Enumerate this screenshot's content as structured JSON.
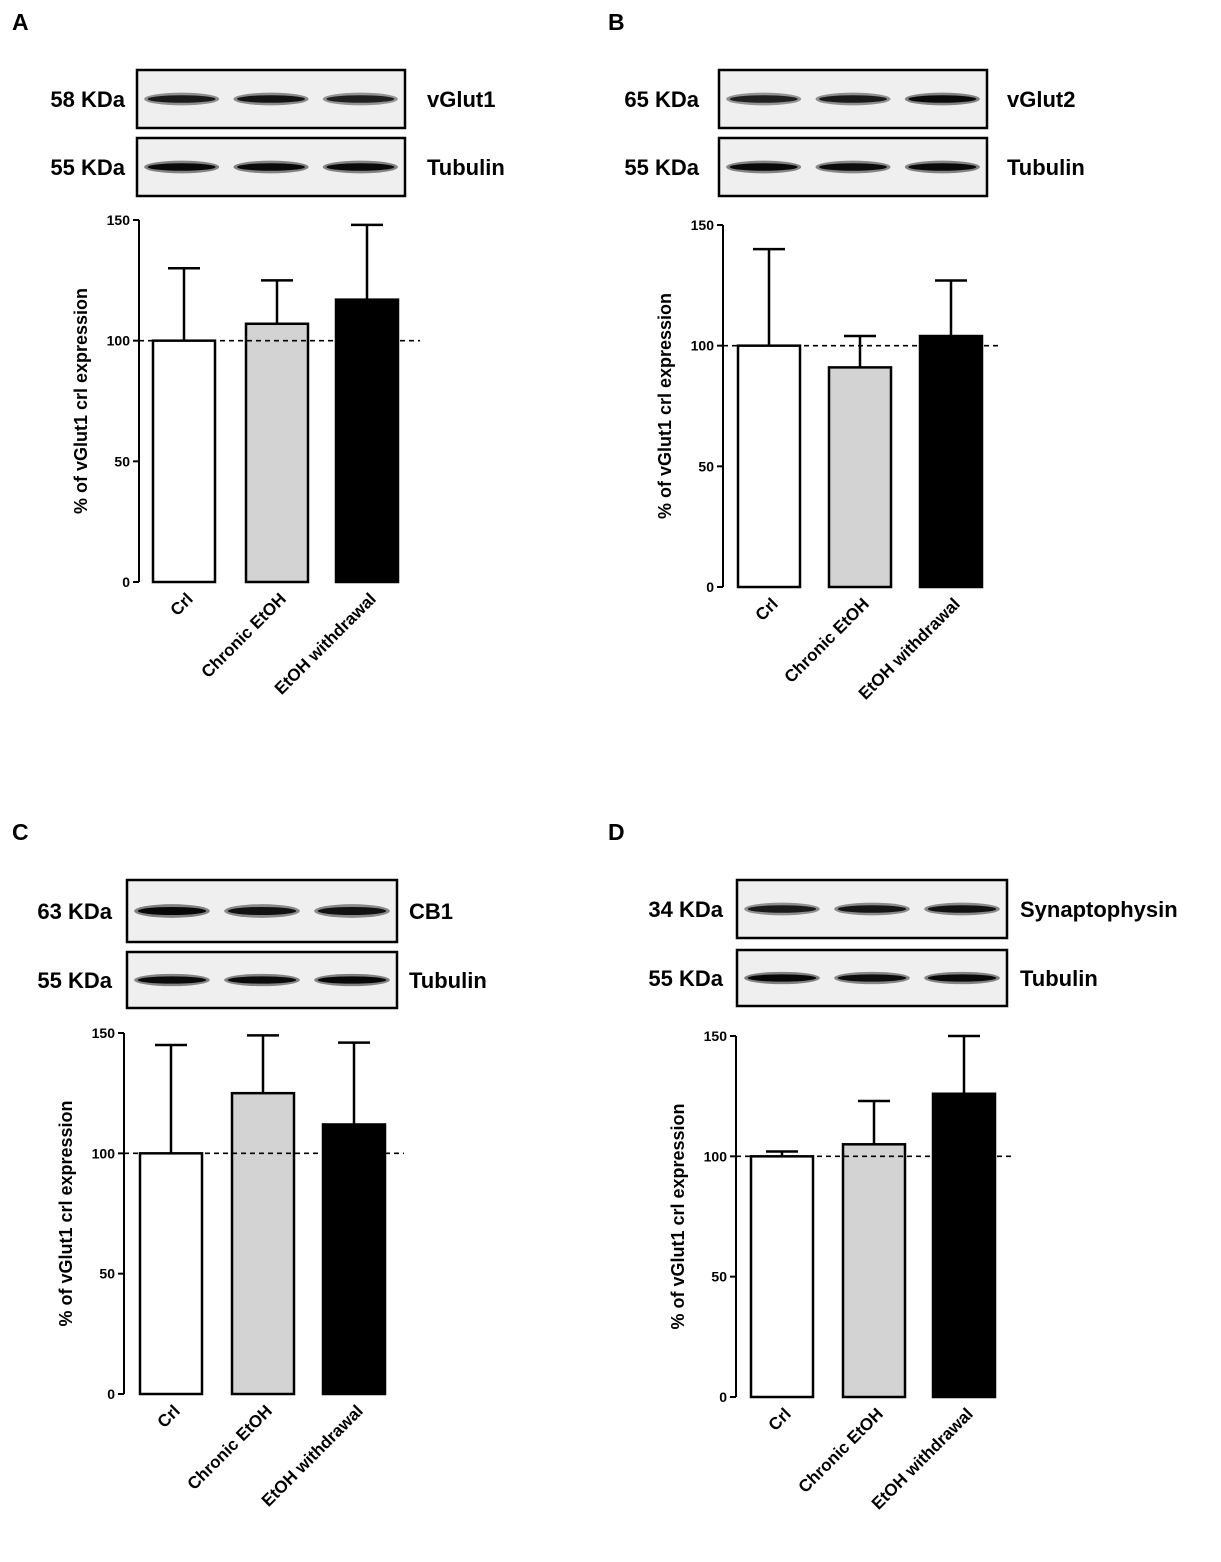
{
  "chart_data": [
    {
      "panel": "A",
      "type": "bar",
      "blot": [
        {
          "kda": "58 KDa",
          "protein": "vGlut1",
          "band_intensity": [
            0.82,
            0.86,
            0.78
          ]
        },
        {
          "kda": "55 KDa",
          "protein": "Tubulin",
          "band_intensity": [
            0.92,
            0.92,
            0.92
          ]
        }
      ],
      "categories": [
        "Crl",
        "Chronic EtOH",
        "EtOH withdrawal"
      ],
      "values": [
        100,
        107,
        117
      ],
      "errors": [
        30,
        18,
        31
      ],
      "bar_colors": [
        "#ffffff",
        "#d3d3d3",
        "#000000"
      ],
      "ylabel": "% of vGlut1 crl expression",
      "yticks": [
        "0",
        "50",
        "100",
        "150"
      ],
      "ylim": [
        0,
        150
      ],
      "reference_line": 100
    },
    {
      "panel": "B",
      "type": "bar",
      "blot": [
        {
          "kda": "65 KDa",
          "protein": "vGlut2",
          "band_intensity": [
            0.78,
            0.82,
            0.92
          ]
        },
        {
          "kda": "55 KDa",
          "protein": "Tubulin",
          "band_intensity": [
            0.92,
            0.9,
            0.92
          ]
        }
      ],
      "categories": [
        "Crl",
        "Chronic EtOH",
        "EtOH withdrawal"
      ],
      "values": [
        100,
        91,
        104
      ],
      "errors": [
        40,
        13,
        23
      ],
      "bar_colors": [
        "#ffffff",
        "#d3d3d3",
        "#000000"
      ],
      "ylabel": "% of vGlut1 crl expression",
      "yticks": [
        "0",
        "50",
        "100",
        "150"
      ],
      "ylim": [
        0,
        150
      ],
      "reference_line": 100
    },
    {
      "panel": "C",
      "type": "bar",
      "blot": [
        {
          "kda": "63 KDa",
          "protein": "CB1",
          "band_intensity": [
            0.95,
            0.88,
            0.88
          ]
        },
        {
          "kda": "55 KDa",
          "protein": "Tubulin",
          "band_intensity": [
            0.92,
            0.92,
            0.95
          ]
        }
      ],
      "categories": [
        "Crl",
        "Chronic EtOH",
        "EtOH withdrawal"
      ],
      "values": [
        100,
        125,
        112
      ],
      "errors": [
        45,
        24,
        34
      ],
      "bar_colors": [
        "#ffffff",
        "#d3d3d3",
        "#000000"
      ],
      "ylabel": "% of vGlut1 crl expression",
      "yticks": [
        "0",
        "50",
        "100",
        "150"
      ],
      "ylim": [
        0,
        150
      ],
      "reference_line": 100
    },
    {
      "panel": "D",
      "type": "bar",
      "blot": [
        {
          "kda": "34 KDa",
          "protein": "Synaptophysin",
          "band_intensity": [
            0.82,
            0.85,
            0.88
          ]
        },
        {
          "kda": "55 KDa",
          "protein": "Tubulin",
          "band_intensity": [
            0.95,
            0.9,
            0.92
          ]
        }
      ],
      "categories": [
        "Crl",
        "Chronic EtOH",
        "EtOH withdrawal"
      ],
      "values": [
        100,
        105,
        126
      ],
      "errors": [
        2,
        18,
        24
      ],
      "bar_colors": [
        "#ffffff",
        "#d3d3d3",
        "#000000"
      ],
      "ylabel": "% of vGlut1 crl expression",
      "yticks": [
        "0",
        "50",
        "100",
        "150"
      ],
      "ylim": [
        0,
        150
      ],
      "reference_line": 100
    }
  ]
}
